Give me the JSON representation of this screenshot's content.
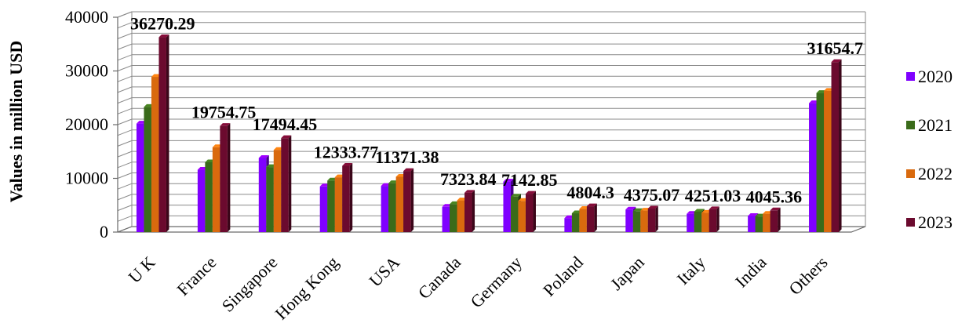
{
  "chart_data": {
    "type": "bar",
    "title": "",
    "xlabel": "",
    "ylabel": "Values in million USD",
    "ylim": [
      0,
      40000
    ],
    "yticks": [
      "0",
      "10000",
      "20000",
      "30000",
      "40000"
    ],
    "grid": true,
    "legend_position": "right",
    "categories": [
      "U K",
      "France",
      "Singapore",
      "Hong Kong",
      "USA",
      "Canada",
      "Germany",
      "Poland",
      "Japan",
      "Italy",
      "India",
      "Others"
    ],
    "series": [
      {
        "name": "2020",
        "color": "#7F00FF",
        "values": [
          20200,
          11600,
          13800,
          8500,
          8600,
          4700,
          9400,
          2600,
          4200,
          3400,
          3000,
          24000
        ]
      },
      {
        "name": "2021",
        "color": "#3A6B1A",
        "values": [
          23300,
          13000,
          12100,
          9600,
          9100,
          5200,
          6600,
          3500,
          3900,
          3800,
          2900,
          25900
        ]
      },
      {
        "name": "2022",
        "color": "#D96A0E",
        "values": [
          28900,
          15800,
          15300,
          10200,
          10300,
          5900,
          5800,
          4300,
          4000,
          3600,
          3400,
          26300
        ]
      },
      {
        "name": "2023",
        "color": "#6B0A2E",
        "values": [
          36270.29,
          19754.75,
          17494.45,
          12333.77,
          11371.38,
          7323.84,
          7142.85,
          4804.3,
          4375.07,
          4251.03,
          4045.36,
          31654.7
        ]
      }
    ],
    "data_labels": [
      "36270.29",
      "19754.75",
      "17494.45",
      "12333.77",
      "11371.38",
      "7323.84",
      "7142.85",
      "4804.3",
      "4375.07",
      "4251.03",
      "4045.36",
      "31654.7"
    ]
  }
}
